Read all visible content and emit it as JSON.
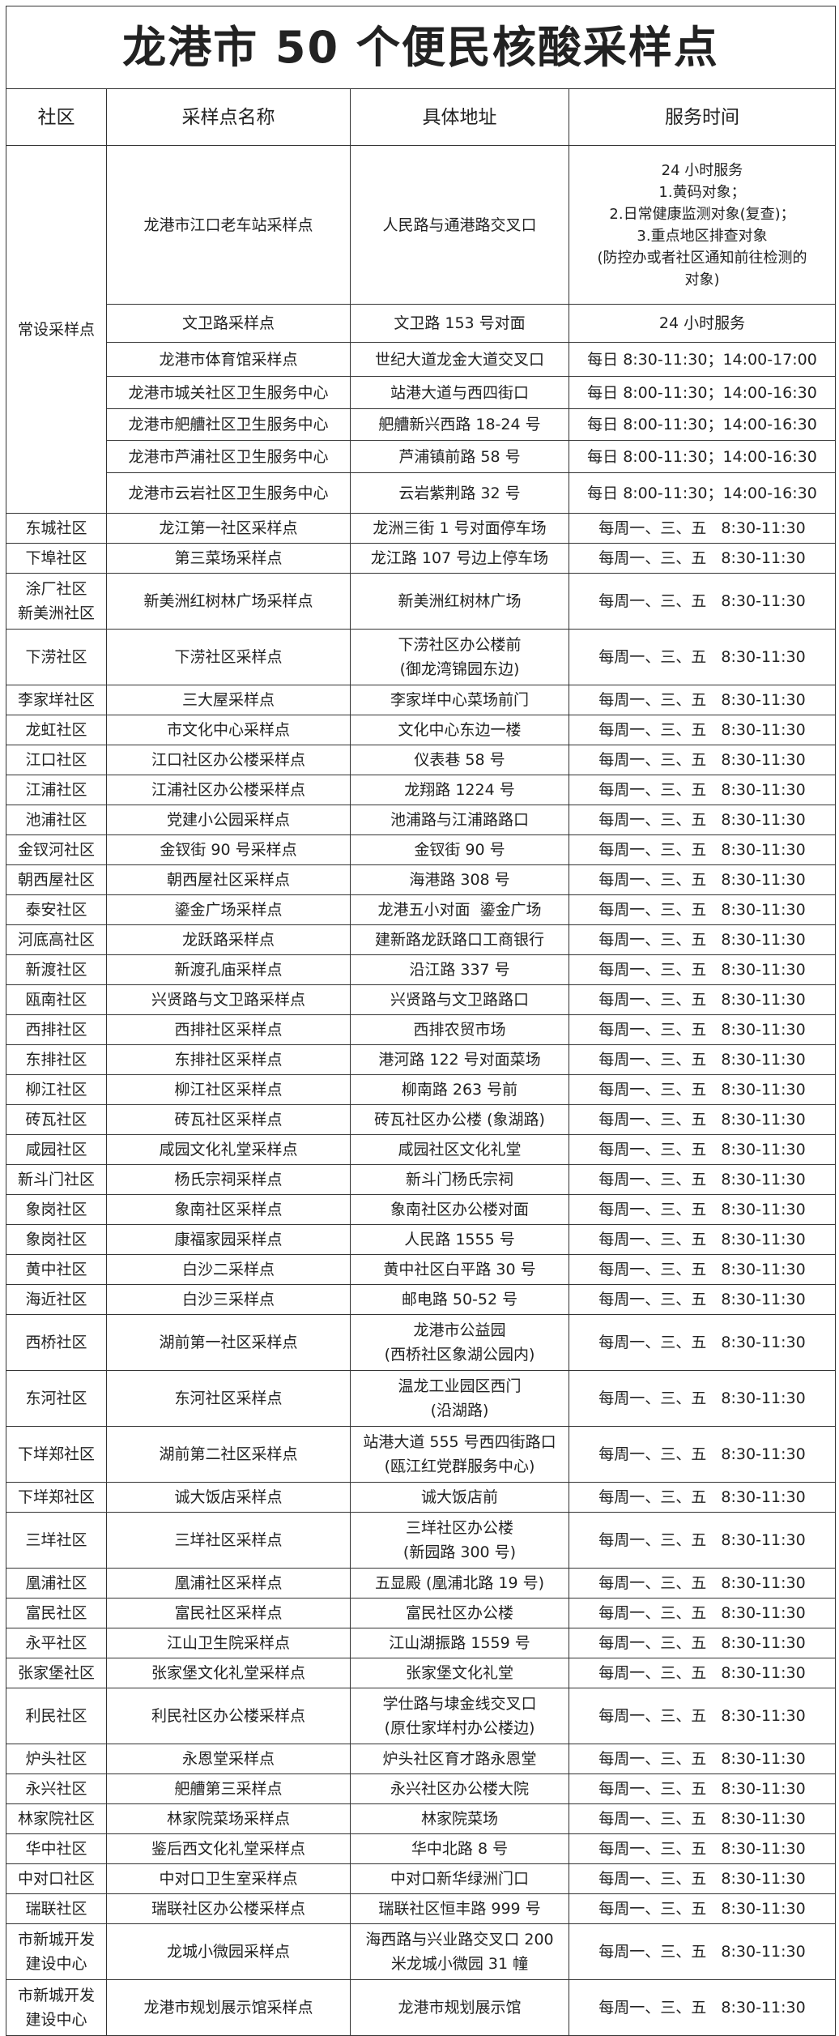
{
  "title": "龙港市 50 个便民核酸采样点",
  "headers": [
    "社区",
    "采样点名称",
    "具体地址",
    "服务时间"
  ],
  "fixed_group": {
    "community": "常设采样点",
    "rows": [
      {
        "name": [
          "龙港市江口老车站采样点"
        ],
        "address": [
          "人民路与通港路交叉口"
        ],
        "time": [
          "24 小时服务",
          "1.黄码对象；",
          "2.日常健康监测对象(复查)；",
          "3.重点地区排查对象",
          "(防控办或者社区通知前往检测的",
          "对象)"
        ]
      },
      {
        "name": [
          "文卫路采样点"
        ],
        "address": [
          "文卫路 153 号对面"
        ],
        "time": [
          "24 小时服务"
        ]
      },
      {
        "name": [
          "龙港市体育馆采样点"
        ],
        "address": [
          "世纪大道龙金大道交叉口"
        ],
        "time": [
          "每日 8:30-11:30；14:00-17:00"
        ]
      },
      {
        "name": [
          "龙港市城关社区卫生服务中心"
        ],
        "address": [
          "站港大道与西四街口"
        ],
        "time": [
          "每日 8:00-11:30；14:00-16:30"
        ]
      },
      {
        "name": [
          "龙港市舥艚社区卫生服务中心"
        ],
        "address": [
          "舥艚新兴西路 18-24 号"
        ],
        "time": [
          "每日 8:00-11:30；14:00-16:30"
        ]
      },
      {
        "name": [
          "龙港市芦浦社区卫生服务中心"
        ],
        "address": [
          "芦浦镇前路 58 号"
        ],
        "time": [
          "每日 8:00-11:30；14:00-16:30"
        ]
      },
      {
        "name": [
          "龙港市云岩社区卫生服务中心"
        ],
        "address": [
          "云岩紫荆路 32 号"
        ],
        "time": [
          "每日 8:00-11:30；14:00-16:30"
        ]
      }
    ]
  },
  "rows": [
    {
      "community": [
        "东城社区"
      ],
      "name": [
        "龙江第一社区采样点"
      ],
      "address": [
        "龙洲三街 1 号对面停车场"
      ],
      "time": [
        "每周一、三、五   8:30-11:30"
      ]
    },
    {
      "community": [
        "下埠社区"
      ],
      "name": [
        "第三菜场采样点"
      ],
      "address": [
        "龙江路 107 号边上停车场"
      ],
      "time": [
        "每周一、三、五   8:30-11:30"
      ]
    },
    {
      "community": [
        "涂厂社区",
        "新美洲社区"
      ],
      "name": [
        "新美洲红树林广场采样点"
      ],
      "address": [
        "新美洲红树林广场"
      ],
      "time": [
        "每周一、三、五   8:30-11:30"
      ]
    },
    {
      "community": [
        "下涝社区"
      ],
      "name": [
        "下涝社区采样点"
      ],
      "address": [
        "下涝社区办公楼前",
        "(御龙湾锦园东边)"
      ],
      "time": [
        "每周一、三、五   8:30-11:30"
      ]
    },
    {
      "community": [
        "李家垟社区"
      ],
      "name": [
        "三大屋采样点"
      ],
      "address": [
        "李家垟中心菜场前门"
      ],
      "time": [
        "每周一、三、五   8:30-11:30"
      ]
    },
    {
      "community": [
        "龙虹社区"
      ],
      "name": [
        "市文化中心采样点"
      ],
      "address": [
        "文化中心东边一楼"
      ],
      "time": [
        "每周一、三、五   8:30-11:30"
      ]
    },
    {
      "community": [
        "江口社区"
      ],
      "name": [
        "江口社区办公楼采样点"
      ],
      "address": [
        "仪表巷 58 号"
      ],
      "time": [
        "每周一、三、五   8:30-11:30"
      ]
    },
    {
      "community": [
        "江浦社区"
      ],
      "name": [
        "江浦社区办公楼采样点"
      ],
      "address": [
        "龙翔路 1224 号"
      ],
      "time": [
        "每周一、三、五   8:30-11:30"
      ]
    },
    {
      "community": [
        "池浦社区"
      ],
      "name": [
        "党建小公园采样点"
      ],
      "address": [
        "池浦路与江浦路路口"
      ],
      "time": [
        "每周一、三、五   8:30-11:30"
      ]
    },
    {
      "community": [
        "金钗河社区"
      ],
      "name": [
        "金钗街 90 号采样点"
      ],
      "address": [
        "金钗街 90 号"
      ],
      "time": [
        "每周一、三、五   8:30-11:30"
      ]
    },
    {
      "community": [
        "朝西屋社区"
      ],
      "name": [
        "朝西屋社区采样点"
      ],
      "address": [
        "海港路 308 号"
      ],
      "time": [
        "每周一、三、五   8:30-11:30"
      ]
    },
    {
      "community": [
        "泰安社区"
      ],
      "name": [
        "鎏金广场采样点"
      ],
      "address": [
        "龙港五小对面  鎏金广场"
      ],
      "time": [
        "每周一、三、五   8:30-11:30"
      ]
    },
    {
      "community": [
        "河底高社区"
      ],
      "name": [
        "龙跃路采样点"
      ],
      "address": [
        "建新路龙跃路口工商银行"
      ],
      "time": [
        "每周一、三、五   8:30-11:30"
      ]
    },
    {
      "community": [
        "新渡社区"
      ],
      "name": [
        "新渡孔庙采样点"
      ],
      "address": [
        "沿江路 337 号"
      ],
      "time": [
        "每周一、三、五   8:30-11:30"
      ]
    },
    {
      "community": [
        "瓯南社区"
      ],
      "name": [
        "兴贤路与文卫路采样点"
      ],
      "address": [
        "兴贤路与文卫路路口"
      ],
      "time": [
        "每周一、三、五   8:30-11:30"
      ]
    },
    {
      "community": [
        "西排社区"
      ],
      "name": [
        "西排社区采样点"
      ],
      "address": [
        "西排农贸市场"
      ],
      "time": [
        "每周一、三、五   8:30-11:30"
      ]
    },
    {
      "community": [
        "东排社区"
      ],
      "name": [
        "东排社区采样点"
      ],
      "address": [
        "港河路 122 号对面菜场"
      ],
      "time": [
        "每周一、三、五   8:30-11:30"
      ]
    },
    {
      "community": [
        "柳江社区"
      ],
      "name": [
        "柳江社区采样点"
      ],
      "address": [
        "柳南路 263 号前"
      ],
      "time": [
        "每周一、三、五   8:30-11:30"
      ]
    },
    {
      "community": [
        "砖瓦社区"
      ],
      "name": [
        "砖瓦社区采样点"
      ],
      "address": [
        "砖瓦社区办公楼 (象湖路)"
      ],
      "time": [
        "每周一、三、五   8:30-11:30"
      ]
    },
    {
      "community": [
        "咸园社区"
      ],
      "name": [
        "咸园文化礼堂采样点"
      ],
      "address": [
        "咸园社区文化礼堂"
      ],
      "time": [
        "每周一、三、五   8:30-11:30"
      ]
    },
    {
      "community": [
        "新斗门社区"
      ],
      "name": [
        "杨氏宗祠采样点"
      ],
      "address": [
        "新斗门杨氏宗祠"
      ],
      "time": [
        "每周一、三、五   8:30-11:30"
      ]
    },
    {
      "community": [
        "象岗社区"
      ],
      "name": [
        "象南社区采样点"
      ],
      "address": [
        "象南社区办公楼对面"
      ],
      "time": [
        "每周一、三、五   8:30-11:30"
      ]
    },
    {
      "community": [
        "象岗社区"
      ],
      "name": [
        "康福家园采样点"
      ],
      "address": [
        "人民路 1555 号"
      ],
      "time": [
        "每周一、三、五   8:30-11:30"
      ]
    },
    {
      "community": [
        "黄中社区"
      ],
      "name": [
        "白沙二采样点"
      ],
      "address": [
        "黄中社区白平路 30 号"
      ],
      "time": [
        "每周一、三、五   8:30-11:30"
      ]
    },
    {
      "community": [
        "海近社区"
      ],
      "name": [
        "白沙三采样点"
      ],
      "address": [
        "邮电路 50-52 号"
      ],
      "time": [
        "每周一、三、五   8:30-11:30"
      ]
    },
    {
      "community": [
        "西桥社区"
      ],
      "name": [
        "湖前第一社区采样点"
      ],
      "address": [
        "龙港市公益园",
        "(西桥社区象湖公园内)"
      ],
      "time": [
        "每周一、三、五   8:30-11:30"
      ]
    },
    {
      "community": [
        "东河社区"
      ],
      "name": [
        "东河社区采样点"
      ],
      "address": [
        "温龙工业园区西门",
        "(沿湖路)"
      ],
      "time": [
        "每周一、三、五   8:30-11:30"
      ]
    },
    {
      "community": [
        "下垟郑社区"
      ],
      "name": [
        "湖前第二社区采样点"
      ],
      "address": [
        "站港大道 555 号西四街路口",
        "(瓯江红党群服务中心)"
      ],
      "time": [
        "每周一、三、五   8:30-11:30"
      ]
    },
    {
      "community": [
        "下垟郑社区"
      ],
      "name": [
        "诚大饭店采样点"
      ],
      "address": [
        "诚大饭店前"
      ],
      "time": [
        "每周一、三、五   8:30-11:30"
      ]
    },
    {
      "community": [
        "三垟社区"
      ],
      "name": [
        "三垟社区采样点"
      ],
      "address": [
        "三垟社区办公楼",
        "(新园路 300 号)"
      ],
      "time": [
        "每周一、三、五   8:30-11:30"
      ]
    },
    {
      "community": [
        "凰浦社区"
      ],
      "name": [
        "凰浦社区采样点"
      ],
      "address": [
        "五显殿 (凰浦北路 19 号)"
      ],
      "time": [
        "每周一、三、五   8:30-11:30"
      ]
    },
    {
      "community": [
        "富民社区"
      ],
      "name": [
        "富民社区采样点"
      ],
      "address": [
        "富民社区办公楼"
      ],
      "time": [
        "每周一、三、五   8:30-11:30"
      ]
    },
    {
      "community": [
        "永平社区"
      ],
      "name": [
        "江山卫生院采样点"
      ],
      "address": [
        "江山湖振路 1559 号"
      ],
      "time": [
        "每周一、三、五   8:30-11:30"
      ]
    },
    {
      "community": [
        "张家堡社区"
      ],
      "name": [
        "张家堡文化礼堂采样点"
      ],
      "address": [
        "张家堡文化礼堂"
      ],
      "time": [
        "每周一、三、五   8:30-11:30"
      ]
    },
    {
      "community": [
        "利民社区"
      ],
      "name": [
        "利民社区办公楼采样点"
      ],
      "address": [
        "学仕路与埭金线交叉口",
        "(原仕家垟村办公楼边)"
      ],
      "time": [
        "每周一、三、五   8:30-11:30"
      ]
    },
    {
      "community": [
        "炉头社区"
      ],
      "name": [
        "永恩堂采样点"
      ],
      "address": [
        "炉头社区育才路永恩堂"
      ],
      "time": [
        "每周一、三、五   8:30-11:30"
      ]
    },
    {
      "community": [
        "永兴社区"
      ],
      "name": [
        "舥艚第三采样点"
      ],
      "address": [
        "永兴社区办公楼大院"
      ],
      "time": [
        "每周一、三、五   8:30-11:30"
      ]
    },
    {
      "community": [
        "林家院社区"
      ],
      "name": [
        "林家院菜场采样点"
      ],
      "address": [
        "林家院菜场"
      ],
      "time": [
        "每周一、三、五   8:30-11:30"
      ]
    },
    {
      "community": [
        "华中社区"
      ],
      "name": [
        "鉴后西文化礼堂采样点"
      ],
      "address": [
        "华中北路 8 号"
      ],
      "time": [
        "每周一、三、五   8:30-11:30"
      ]
    },
    {
      "community": [
        "中对口社区"
      ],
      "name": [
        "中对口卫生室采样点"
      ],
      "address": [
        "中对口新华绿洲门口"
      ],
      "time": [
        "每周一、三、五   8:30-11:30"
      ]
    },
    {
      "community": [
        "瑞联社区"
      ],
      "name": [
        "瑞联社区办公楼采样点"
      ],
      "address": [
        "瑞联社区恒丰路 999 号"
      ],
      "time": [
        "每周一、三、五   8:30-11:30"
      ]
    },
    {
      "community": [
        "市新城开发",
        "建设中心"
      ],
      "name": [
        "龙城小微园采样点"
      ],
      "address": [
        "海西路与兴业路交叉口 200",
        "米龙城小微园 31 幢"
      ],
      "time": [
        "每周一、三、五   8:30-11:30"
      ]
    },
    {
      "community": [
        "市新城开发",
        "建设中心"
      ],
      "name": [
        "龙港市规划展示馆采样点"
      ],
      "address": [
        "龙港市规划展示馆"
      ],
      "time": [
        "每周一、三、五   8:30-11:30"
      ]
    }
  ]
}
